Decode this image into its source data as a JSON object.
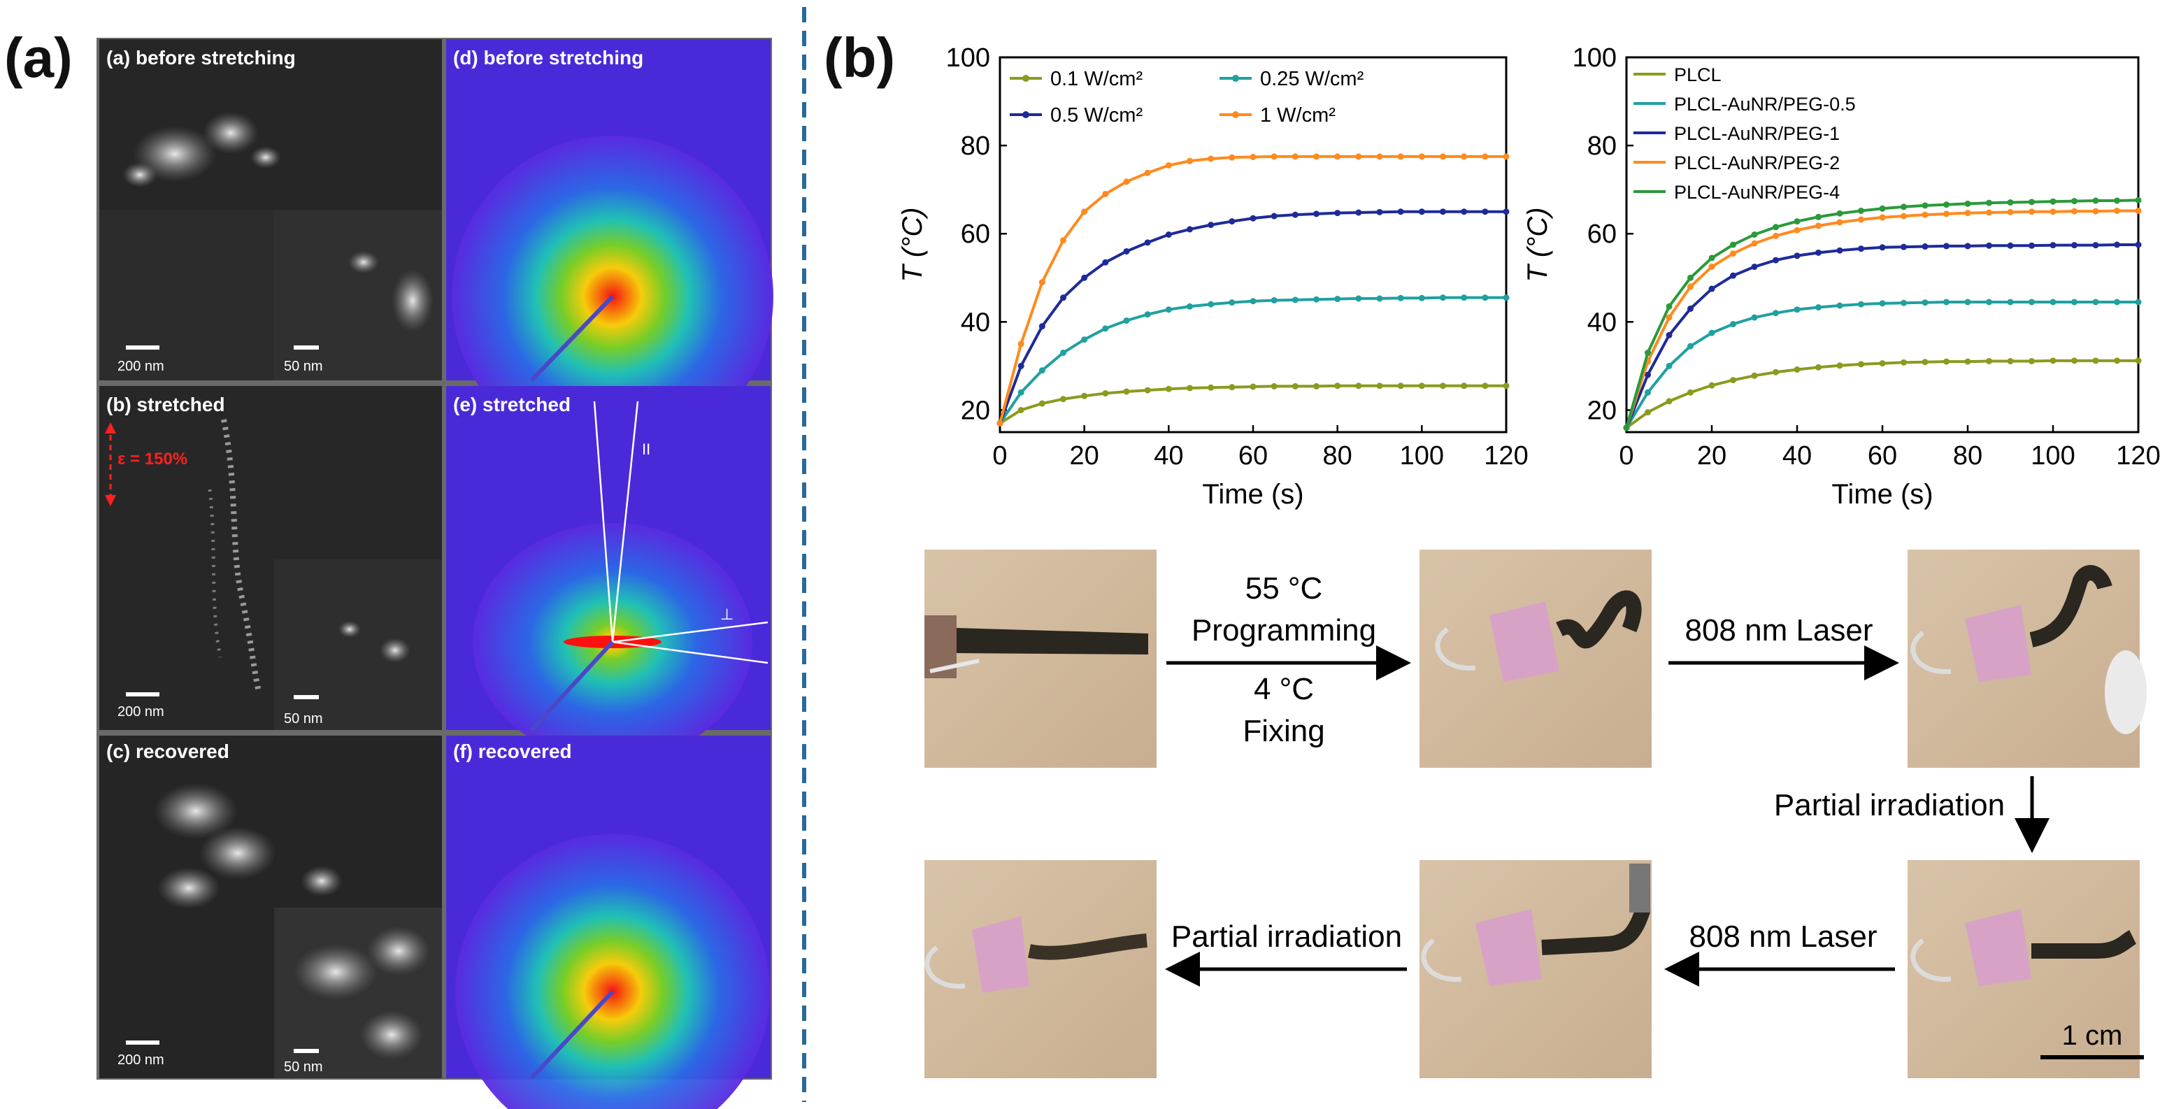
{
  "panel_a": {
    "label": "(a)",
    "tem": [
      {
        "caption": "(a) before stretching",
        "scale_left": "200 nm",
        "scale_right": "50 nm"
      },
      {
        "caption": "(b) stretched",
        "scale_left": "200 nm",
        "scale_right": "50 nm",
        "strain": "ε = 150%"
      },
      {
        "caption": "(c) recovered",
        "scale_left": "200 nm",
        "scale_right": "50 nm"
      }
    ],
    "saxs": [
      {
        "caption": "(d) before stretching"
      },
      {
        "caption": "(e) stretched",
        "mark_parallel": "II",
        "mark_perp": "⊥"
      },
      {
        "caption": "(f) recovered"
      }
    ]
  },
  "panel_b": {
    "label": "(b)",
    "photos": {
      "arrow1_top1": "55 °C",
      "arrow1_top2": "Programming",
      "arrow1_bottom1": "4 °C",
      "arrow1_bottom2": "Fixing",
      "arrow2": "808 nm Laser",
      "arrow_down": "Partial irradiation",
      "arrow4": "808 nm Laser",
      "arrow5": "Partial irradiation",
      "scale_bar": "1 cm"
    }
  },
  "colors": {
    "olive": "#8c9a1e",
    "teal": "#20a0a0",
    "navy": "#1e2a9a",
    "orange": "#ff8a1e",
    "green": "#2a9a3a",
    "divider": "#2a6a9a"
  },
  "chart_data": [
    {
      "type": "line",
      "title": "",
      "xlabel": "Time (s)",
      "ylabel": "T (°C)",
      "xlim": [
        0,
        120
      ],
      "ylim": [
        15,
        100
      ],
      "xticks": [
        0,
        20,
        40,
        60,
        80,
        100,
        120
      ],
      "yticks": [
        20,
        40,
        60,
        80,
        100
      ],
      "x": [
        0,
        5,
        10,
        15,
        20,
        25,
        30,
        35,
        40,
        45,
        50,
        55,
        60,
        65,
        70,
        75,
        80,
        85,
        90,
        95,
        100,
        105,
        110,
        115,
        120
      ],
      "series": [
        {
          "name": "0.1 W/cm²",
          "color": "olive",
          "values": [
            17,
            20,
            21.5,
            22.5,
            23.2,
            23.8,
            24.2,
            24.5,
            24.8,
            25.0,
            25.1,
            25.2,
            25.3,
            25.4,
            25.4,
            25.4,
            25.5,
            25.5,
            25.5,
            25.5,
            25.5,
            25.5,
            25.5,
            25.5,
            25.5
          ]
        },
        {
          "name": "0.25 W/cm²",
          "color": "teal",
          "values": [
            17,
            24,
            29,
            33,
            36,
            38.5,
            40.3,
            41.7,
            42.8,
            43.5,
            44.0,
            44.4,
            44.7,
            44.9,
            45.0,
            45.1,
            45.2,
            45.3,
            45.3,
            45.4,
            45.4,
            45.5,
            45.5,
            45.5,
            45.5
          ]
        },
        {
          "name": "0.5 W/cm²",
          "color": "navy",
          "values": [
            17,
            30,
            39,
            45.5,
            50,
            53.5,
            56,
            58,
            59.8,
            61,
            62,
            62.8,
            63.5,
            64,
            64.3,
            64.5,
            64.7,
            64.8,
            64.9,
            65,
            65,
            65,
            65,
            65,
            65
          ]
        },
        {
          "name": "1 W/cm²",
          "color": "orange",
          "values": [
            17,
            35,
            49,
            58.5,
            65,
            69,
            71.8,
            73.8,
            75.5,
            76.5,
            77,
            77.3,
            77.4,
            77.5,
            77.5,
            77.5,
            77.5,
            77.5,
            77.5,
            77.5,
            77.5,
            77.5,
            77.5,
            77.5,
            77.5
          ]
        }
      ],
      "legend_position": "top-left"
    },
    {
      "type": "line",
      "title": "",
      "xlabel": "Time (s)",
      "ylabel": "T (°C)",
      "xlim": [
        0,
        120
      ],
      "ylim": [
        15,
        100
      ],
      "xticks": [
        0,
        20,
        40,
        60,
        80,
        100,
        120
      ],
      "yticks": [
        20,
        40,
        60,
        80,
        100
      ],
      "x": [
        0,
        5,
        10,
        15,
        20,
        25,
        30,
        35,
        40,
        45,
        50,
        55,
        60,
        65,
        70,
        75,
        80,
        85,
        90,
        95,
        100,
        105,
        110,
        115,
        120
      ],
      "series": [
        {
          "name": "PLCL",
          "color": "olive",
          "values": [
            16,
            19.5,
            22,
            24,
            25.6,
            26.8,
            27.8,
            28.6,
            29.2,
            29.7,
            30.1,
            30.4,
            30.6,
            30.8,
            30.9,
            31.0,
            31.0,
            31.1,
            31.1,
            31.1,
            31.2,
            31.2,
            31.2,
            31.2,
            31.2
          ]
        },
        {
          "name": "PLCL-AuNR/PEG-0.5",
          "color": "teal",
          "values": [
            16,
            24,
            30,
            34.5,
            37.5,
            39.5,
            41,
            42,
            42.8,
            43.3,
            43.7,
            44,
            44.2,
            44.3,
            44.4,
            44.5,
            44.5,
            44.5,
            44.5,
            44.5,
            44.5,
            44.5,
            44.5,
            44.5,
            44.5
          ]
        },
        {
          "name": "PLCL-AuNR/PEG-1",
          "color": "navy",
          "values": [
            16,
            28,
            37,
            43,
            47.5,
            50.5,
            52.5,
            54,
            55,
            55.7,
            56.2,
            56.6,
            56.9,
            57,
            57.1,
            57.2,
            57.2,
            57.3,
            57.3,
            57.3,
            57.4,
            57.4,
            57.4,
            57.5,
            57.5
          ]
        },
        {
          "name": "PLCL-AuNR/PEG-2",
          "color": "orange",
          "values": [
            16,
            31,
            41,
            48,
            52.5,
            55.5,
            57.8,
            59.5,
            60.8,
            61.8,
            62.6,
            63.2,
            63.7,
            64,
            64.3,
            64.5,
            64.7,
            64.8,
            64.9,
            65,
            65,
            65.1,
            65.1,
            65.2,
            65.2
          ]
        },
        {
          "name": "PLCL-AuNR/PEG-4",
          "color": "green",
          "values": [
            16,
            33,
            43.5,
            50,
            54.5,
            57.5,
            59.8,
            61.5,
            62.8,
            63.8,
            64.6,
            65.2,
            65.7,
            66.1,
            66.4,
            66.6,
            66.8,
            67,
            67.1,
            67.2,
            67.3,
            67.4,
            67.5,
            67.5,
            67.6
          ]
        }
      ],
      "legend_position": "top-left"
    }
  ]
}
